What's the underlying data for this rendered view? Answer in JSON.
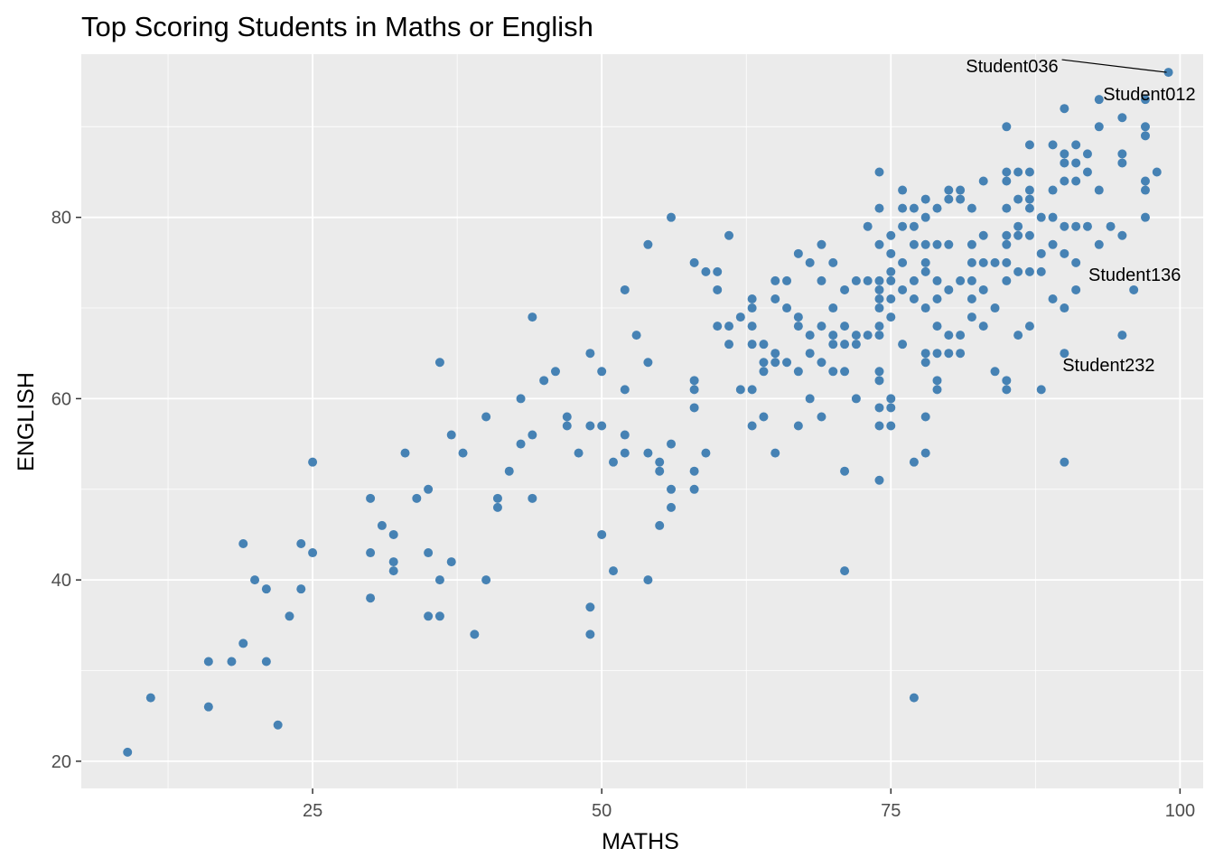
{
  "chart_data": {
    "type": "scatter",
    "title": "Top Scoring Students in Maths or English",
    "xlabel": "MATHS",
    "ylabel": "ENGLISH",
    "xlim": [
      5,
      102
    ],
    "ylim": [
      17,
      98
    ],
    "x_ticks": [
      25,
      50,
      75,
      100
    ],
    "y_ticks": [
      20,
      40,
      60,
      80
    ],
    "grid": true,
    "background": "#EBEBEB",
    "gridline_color": "#FFFFFF",
    "point_color": "#4682B4",
    "points": [
      [
        9,
        21
      ],
      [
        11,
        27
      ],
      [
        16,
        31
      ],
      [
        16,
        26
      ],
      [
        18,
        31
      ],
      [
        19,
        44
      ],
      [
        19,
        33
      ],
      [
        20,
        40
      ],
      [
        21,
        39
      ],
      [
        21,
        31
      ],
      [
        22,
        24
      ],
      [
        23,
        36
      ],
      [
        24,
        44
      ],
      [
        24,
        39
      ],
      [
        25,
        53
      ],
      [
        25,
        43
      ],
      [
        30,
        49
      ],
      [
        30,
        43
      ],
      [
        30,
        38
      ],
      [
        31,
        46
      ],
      [
        32,
        45
      ],
      [
        32,
        42
      ],
      [
        32,
        41
      ],
      [
        33,
        54
      ],
      [
        34,
        49
      ],
      [
        35,
        50
      ],
      [
        35,
        43
      ],
      [
        35,
        36
      ],
      [
        36,
        64
      ],
      [
        36,
        40
      ],
      [
        36,
        36
      ],
      [
        37,
        56
      ],
      [
        37,
        42
      ],
      [
        38,
        54
      ],
      [
        39,
        34
      ],
      [
        40,
        58
      ],
      [
        40,
        40
      ],
      [
        41,
        49
      ],
      [
        41,
        48
      ],
      [
        42,
        52
      ],
      [
        43,
        60
      ],
      [
        43,
        55
      ],
      [
        44,
        69
      ],
      [
        44,
        56
      ],
      [
        44,
        49
      ],
      [
        45,
        62
      ],
      [
        46,
        63
      ],
      [
        47,
        58
      ],
      [
        47,
        57
      ],
      [
        48,
        54
      ],
      [
        49,
        65
      ],
      [
        49,
        57
      ],
      [
        49,
        37
      ],
      [
        49,
        34
      ],
      [
        50,
        63
      ],
      [
        50,
        57
      ],
      [
        50,
        45
      ],
      [
        51,
        53
      ],
      [
        51,
        41
      ],
      [
        52,
        72
      ],
      [
        52,
        61
      ],
      [
        52,
        56
      ],
      [
        52,
        54
      ],
      [
        53,
        67
      ],
      [
        54,
        77
      ],
      [
        54,
        64
      ],
      [
        54,
        54
      ],
      [
        54,
        40
      ],
      [
        55,
        53
      ],
      [
        55,
        52
      ],
      [
        55,
        46
      ],
      [
        56,
        80
      ],
      [
        56,
        55
      ],
      [
        56,
        50
      ],
      [
        56,
        48
      ],
      [
        58,
        75
      ],
      [
        58,
        62
      ],
      [
        58,
        61
      ],
      [
        58,
        59
      ],
      [
        58,
        52
      ],
      [
        58,
        50
      ],
      [
        59,
        74
      ],
      [
        59,
        54
      ],
      [
        60,
        74
      ],
      [
        60,
        72
      ],
      [
        60,
        68
      ],
      [
        61,
        78
      ],
      [
        61,
        68
      ],
      [
        61,
        66
      ],
      [
        62,
        69
      ],
      [
        62,
        61
      ],
      [
        63,
        71
      ],
      [
        63,
        70
      ],
      [
        63,
        68
      ],
      [
        63,
        66
      ],
      [
        63,
        61
      ],
      [
        63,
        57
      ],
      [
        64,
        66
      ],
      [
        64,
        64
      ],
      [
        64,
        63
      ],
      [
        64,
        58
      ],
      [
        65,
        73
      ],
      [
        65,
        71
      ],
      [
        65,
        65
      ],
      [
        65,
        64
      ],
      [
        65,
        54
      ],
      [
        66,
        73
      ],
      [
        66,
        70
      ],
      [
        66,
        64
      ],
      [
        67,
        76
      ],
      [
        67,
        69
      ],
      [
        67,
        68
      ],
      [
        67,
        63
      ],
      [
        67,
        57
      ],
      [
        68,
        75
      ],
      [
        68,
        67
      ],
      [
        68,
        65
      ],
      [
        68,
        60
      ],
      [
        69,
        77
      ],
      [
        69,
        73
      ],
      [
        69,
        68
      ],
      [
        69,
        64
      ],
      [
        69,
        58
      ],
      [
        70,
        75
      ],
      [
        70,
        70
      ],
      [
        70,
        67
      ],
      [
        70,
        66
      ],
      [
        70,
        63
      ],
      [
        71,
        72
      ],
      [
        71,
        68
      ],
      [
        71,
        66
      ],
      [
        71,
        63
      ],
      [
        71,
        52
      ],
      [
        71,
        41
      ],
      [
        72,
        73
      ],
      [
        72,
        67
      ],
      [
        72,
        66
      ],
      [
        72,
        60
      ],
      [
        73,
        79
      ],
      [
        73,
        73
      ],
      [
        73,
        67
      ],
      [
        74,
        85
      ],
      [
        74,
        81
      ],
      [
        74,
        77
      ],
      [
        74,
        73
      ],
      [
        74,
        72
      ],
      [
        74,
        71
      ],
      [
        74,
        70
      ],
      [
        74,
        68
      ],
      [
        74,
        67
      ],
      [
        74,
        63
      ],
      [
        74,
        62
      ],
      [
        74,
        59
      ],
      [
        74,
        57
      ],
      [
        74,
        51
      ],
      [
        75,
        78
      ],
      [
        75,
        76
      ],
      [
        75,
        74
      ],
      [
        75,
        73
      ],
      [
        75,
        71
      ],
      [
        75,
        69
      ],
      [
        75,
        60
      ],
      [
        75,
        59
      ],
      [
        75,
        57
      ],
      [
        76,
        83
      ],
      [
        76,
        81
      ],
      [
        76,
        79
      ],
      [
        76,
        75
      ],
      [
        76,
        72
      ],
      [
        76,
        66
      ],
      [
        77,
        81
      ],
      [
        77,
        79
      ],
      [
        77,
        77
      ],
      [
        77,
        73
      ],
      [
        77,
        71
      ],
      [
        77,
        53
      ],
      [
        77,
        27
      ],
      [
        78,
        82
      ],
      [
        78,
        80
      ],
      [
        78,
        77
      ],
      [
        78,
        75
      ],
      [
        78,
        74
      ],
      [
        78,
        70
      ],
      [
        78,
        65
      ],
      [
        78,
        64
      ],
      [
        78,
        58
      ],
      [
        78,
        54
      ],
      [
        79,
        81
      ],
      [
        79,
        77
      ],
      [
        79,
        73
      ],
      [
        79,
        71
      ],
      [
        79,
        68
      ],
      [
        79,
        65
      ],
      [
        79,
        62
      ],
      [
        79,
        61
      ],
      [
        80,
        83
      ],
      [
        80,
        82
      ],
      [
        80,
        77
      ],
      [
        80,
        72
      ],
      [
        80,
        67
      ],
      [
        80,
        65
      ],
      [
        81,
        83
      ],
      [
        81,
        82
      ],
      [
        81,
        73
      ],
      [
        81,
        67
      ],
      [
        81,
        65
      ],
      [
        82,
        81
      ],
      [
        82,
        77
      ],
      [
        82,
        75
      ],
      [
        82,
        73
      ],
      [
        82,
        71
      ],
      [
        82,
        69
      ],
      [
        83,
        84
      ],
      [
        83,
        78
      ],
      [
        83,
        75
      ],
      [
        83,
        72
      ],
      [
        83,
        68
      ],
      [
        84,
        75
      ],
      [
        84,
        70
      ],
      [
        84,
        63
      ],
      [
        85,
        90
      ],
      [
        85,
        85
      ],
      [
        85,
        84
      ],
      [
        85,
        81
      ],
      [
        85,
        78
      ],
      [
        85,
        77
      ],
      [
        85,
        75
      ],
      [
        85,
        73
      ],
      [
        85,
        62
      ],
      [
        85,
        61
      ],
      [
        86,
        85
      ],
      [
        86,
        82
      ],
      [
        86,
        79
      ],
      [
        86,
        78
      ],
      [
        86,
        74
      ],
      [
        86,
        67
      ],
      [
        87,
        88
      ],
      [
        87,
        85
      ],
      [
        87,
        83
      ],
      [
        87,
        82
      ],
      [
        87,
        81
      ],
      [
        87,
        78
      ],
      [
        87,
        74
      ],
      [
        87,
        68
      ],
      [
        88,
        80
      ],
      [
        88,
        76
      ],
      [
        88,
        74
      ],
      [
        88,
        61
      ],
      [
        89,
        88
      ],
      [
        89,
        83
      ],
      [
        89,
        80
      ],
      [
        89,
        77
      ],
      [
        89,
        71
      ],
      [
        90,
        92
      ],
      [
        90,
        87
      ],
      [
        90,
        86
      ],
      [
        90,
        84
      ],
      [
        90,
        79
      ],
      [
        90,
        76
      ],
      [
        90,
        70
      ],
      [
        90,
        65
      ],
      [
        90,
        53
      ],
      [
        91,
        88
      ],
      [
        91,
        86
      ],
      [
        91,
        84
      ],
      [
        91,
        79
      ],
      [
        91,
        75
      ],
      [
        91,
        72
      ],
      [
        92,
        87
      ],
      [
        92,
        85
      ],
      [
        92,
        79
      ],
      [
        93,
        93
      ],
      [
        93,
        90
      ],
      [
        93,
        83
      ],
      [
        93,
        77
      ],
      [
        94,
        79
      ],
      [
        95,
        91
      ],
      [
        95,
        87
      ],
      [
        95,
        86
      ],
      [
        95,
        78
      ],
      [
        95,
        67
      ],
      [
        96,
        72
      ],
      [
        97,
        93
      ],
      [
        97,
        90
      ],
      [
        97,
        89
      ],
      [
        97,
        84
      ],
      [
        97,
        83
      ],
      [
        97,
        80
      ],
      [
        98,
        85
      ],
      [
        99,
        96
      ]
    ],
    "labels": [
      {
        "text": "Student036",
        "x": 99,
        "y": 96,
        "position": "left",
        "connector": true
      },
      {
        "text": "Student012",
        "x": 99,
        "y": 96,
        "position": "below-left"
      },
      {
        "text": "Student136",
        "x": 96,
        "y": 72,
        "position": "below"
      },
      {
        "text": "Student232",
        "x": 95,
        "y": 67,
        "position": "below"
      }
    ]
  }
}
